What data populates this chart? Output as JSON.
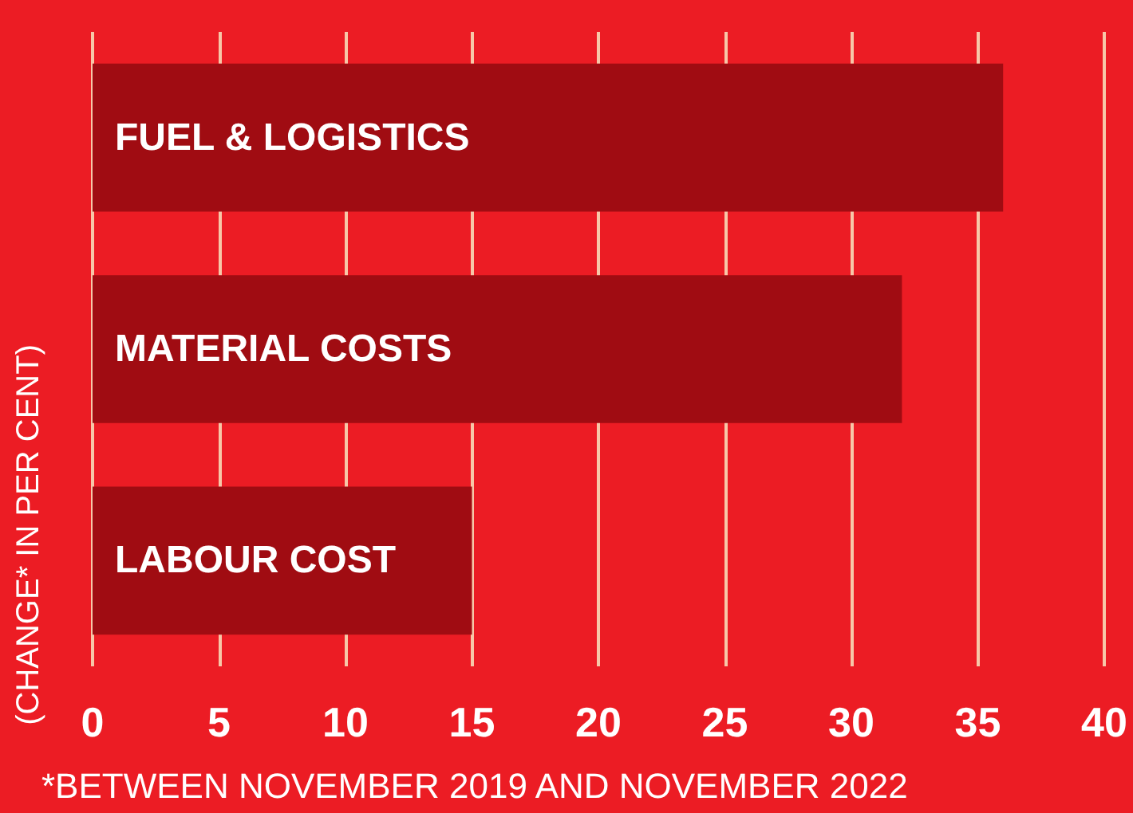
{
  "chart_data": {
    "type": "bar",
    "orientation": "horizontal",
    "ylabel": "(CHANGE* IN PER CENT)",
    "categories": [
      "FUEL & LOGISTICS",
      "MATERIAL COSTS",
      "LABOUR COST"
    ],
    "values": [
      36,
      32,
      15
    ],
    "color": "#a00c12",
    "xlim": [
      0,
      40
    ],
    "xticks": [
      0,
      5,
      10,
      15,
      20,
      25,
      30,
      35,
      40
    ],
    "grid": "x",
    "annotations": [
      "*BETWEEN NOVEMBER 2019 AND NOVEMBER 2022"
    ]
  }
}
